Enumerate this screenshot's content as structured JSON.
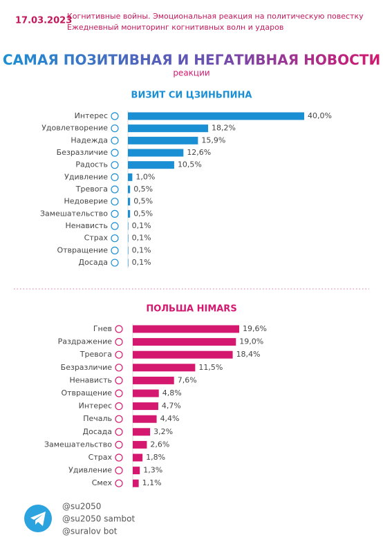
{
  "header": {
    "date": "17.03.2023",
    "line1": "Когнитивные войны. Эмоциональная реакция на политическую повестку",
    "line2": "Ежедневный мониторинг когнитивных волн и ударов",
    "title": "САМАЯ ПОЗИТИВНАЯ И НЕГАТИВНАЯ НОВОСТИ",
    "subtitle": "реакции"
  },
  "chart_data": [
    {
      "type": "bar",
      "orientation": "horizontal",
      "title": "ВИЗИТ СИ ЦЗИНЬПИНА",
      "color": "#1b8fd3",
      "categories": [
        "Интерес",
        "Удовлетворение",
        "Надежда",
        "Безразличие",
        "Радость",
        "Удивление",
        "Тревога",
        "Недоверие",
        "Замешательство",
        "Ненависть",
        "Страх",
        "Отвращение",
        "Досада"
      ],
      "values": [
        40.0,
        18.2,
        15.9,
        12.6,
        10.5,
        1.0,
        0.5,
        0.5,
        0.5,
        0.1,
        0.1,
        0.1,
        0.1
      ],
      "value_labels": [
        "40,0%",
        "18,2%",
        "15,9%",
        "12,6%",
        "10,5%",
        "1,0%",
        "0,5%",
        "0,5%",
        "0,5%",
        "0,1%",
        "0,1%",
        "0,1%",
        "0,1%"
      ]
    },
    {
      "type": "bar",
      "orientation": "horizontal",
      "title": "ПОЛЬША HIMARS",
      "color": "#d4186f",
      "categories": [
        "Гнев",
        "Раздражение",
        "Тревога",
        "Безразличие",
        "Ненависть",
        "Отвращение",
        "Интерес",
        "Печаль",
        "Досада",
        "Замешательство",
        "Страх",
        "Удивление",
        "Смех"
      ],
      "values": [
        19.6,
        19.0,
        18.4,
        11.5,
        7.6,
        4.8,
        4.7,
        4.4,
        3.2,
        2.6,
        1.8,
        1.3,
        1.1
      ],
      "value_labels": [
        "19,6%",
        "19,0%",
        "18,4%",
        "11,5%",
        "7,6%",
        "4,8%",
        "4,7%",
        "4,4%",
        "3,2%",
        "2,6%",
        "1,8%",
        "1,3%",
        "1,1%"
      ]
    }
  ],
  "footer": {
    "handles": [
      "@su2050",
      "@su2050 sambot",
      "@suralov bot"
    ]
  }
}
